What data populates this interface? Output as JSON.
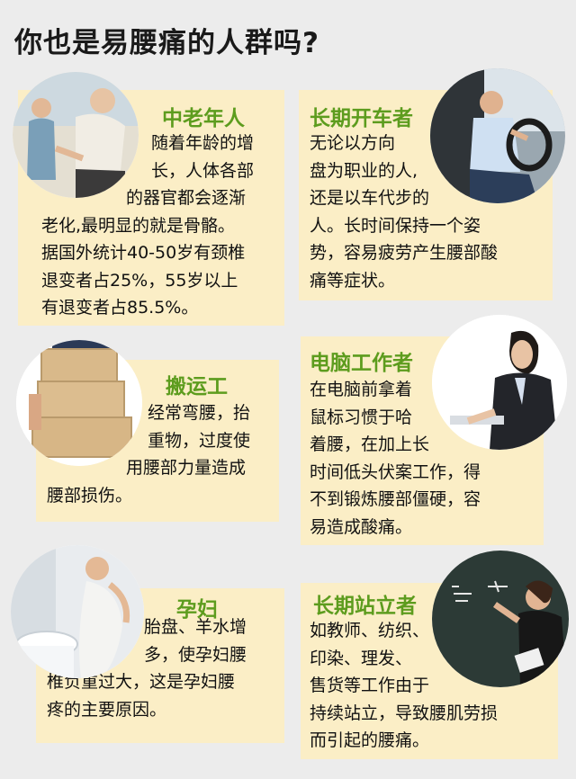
{
  "title": "你也是易腰痛的人群吗?",
  "cards": [
    {
      "heading": "中老年人",
      "lines": [
        "随着年龄的增",
        "长，人体各部",
        "的器官都会逐渐",
        "老化,最明显的就是骨骼。",
        "据国外统计40-50岁有颈椎",
        "退变者占25%，55岁以上",
        "有退变者占85.5%。"
      ],
      "photo": "elderly-man-back-pain-photo"
    },
    {
      "heading": "长期开车者",
      "lines": [
        "无论以方向",
        "盘为职业的人,",
        "还是以车代步的",
        "人。长时间保持一个姿",
        "势，容易疲劳产生腰部酸",
        "痛等症状。"
      ],
      "photo": "driver-at-wheel-photo"
    },
    {
      "heading": "搬运工",
      "lines": [
        "经常弯腰，抬",
        "重物，过度使",
        "用腰部力量造成",
        "腰部损伤。"
      ],
      "photo": "worker-carrying-boxes-photo"
    },
    {
      "heading": "电脑工作者",
      "lines": [
        "在电脑前拿着",
        "鼠标习惯于哈",
        "着腰，在加上长",
        "时间低头伏案工作，得",
        "不到锻炼腰部僵硬，容",
        "易造成酸痛。"
      ],
      "photo": "office-woman-at-computer-photo"
    },
    {
      "heading": "孕妇",
      "lines": [
        "胎盘、羊水增",
        "多，使孕妇腰",
        "椎负重过大，这是孕妇腰",
        "疼的主要原因。"
      ],
      "photo": "pregnant-woman-photo"
    },
    {
      "heading": "长期站立者",
      "lines": [
        "如教师、纺织、",
        "印染、理发、",
        "售货等工作由于",
        "持续站立，导致腰肌劳损",
        "而引起的腰痛。"
      ],
      "photo": "teacher-at-blackboard-photo"
    }
  ],
  "colors": {
    "background": "#ececec",
    "card": "#fbeec6",
    "heading": "#5d9c1e",
    "title": "#1a1a1a"
  }
}
